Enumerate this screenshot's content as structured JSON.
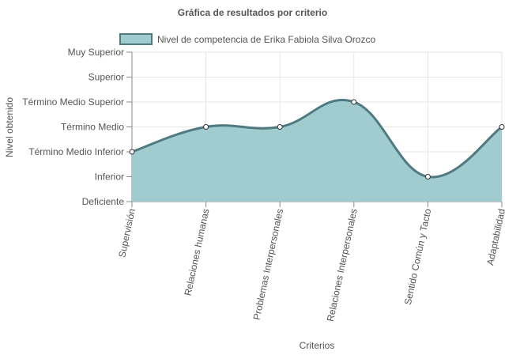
{
  "chart_data": {
    "type": "area",
    "title": "Gráfica de resultados por criterio",
    "xlabel": "Criterios",
    "ylabel": "Nivel obtenido",
    "y_levels": [
      "Deficiente",
      "Inferior",
      "Término Medio Inferior",
      "Término Medio",
      "Término Medio Superior",
      "Superior",
      "Muy Superior"
    ],
    "ylim": [
      0,
      6
    ],
    "categories": [
      "Supervisión",
      "Relaciones humanas",
      "Problemas Interpersonales",
      "Relaciones Interpersonales",
      "Sentido Común y Tacto",
      "Adaptabilidad"
    ],
    "series": [
      {
        "name": "Nivel de competencia de Erika Fabiola Silva Orozco",
        "values": [
          2,
          3,
          3,
          4,
          1,
          3
        ]
      }
    ],
    "grid": true,
    "legend_position": "top",
    "colors": {
      "fill": "#a0cbcf",
      "line": "#4e7a80",
      "point_fill": "#ffffff",
      "point_stroke": "#333333"
    }
  }
}
